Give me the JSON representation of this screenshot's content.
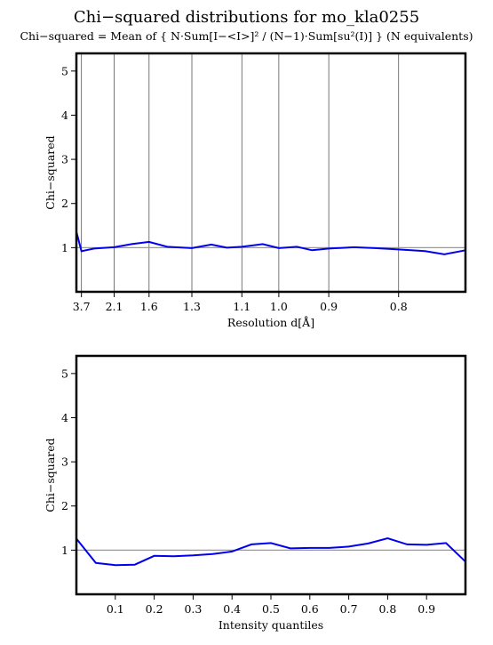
{
  "title": "Chi−squared distributions for mo_kla0255",
  "subtitle": "Chi−squared = Mean of { N·Sum[I−<I>]² / (N−1)·Sum[su²(I)] } (N equivalents)",
  "colors": {
    "line": "#0000ee",
    "reference": "#999999",
    "grid": "#555555",
    "frame": "#000000"
  },
  "chart_data": [
    {
      "type": "line",
      "title": "",
      "xlabel": "Resolution d[Å]",
      "ylabel": "Chi−squared",
      "x_scale": "reciprocal-squared",
      "xlim": [
        4.5,
        0.73
      ],
      "ylim": [
        0.0,
        5.4
      ],
      "yticks": [
        1,
        2,
        3,
        4,
        5
      ],
      "xticks": [
        3.7,
        2.1,
        1.6,
        1.3,
        1.1,
        1.0,
        0.9,
        0.8
      ],
      "xtick_labels": [
        "3.7",
        "2.1",
        "1.6",
        "1.3",
        "1.1",
        "1.0",
        "0.9",
        "0.8"
      ],
      "vertical_grid": true,
      "reference_y": 1,
      "series": [
        {
          "x": [
            4.5,
            3.7,
            2.75,
            2.1,
            1.8,
            1.6,
            1.45,
            1.3,
            1.21,
            1.15,
            1.1,
            1.04,
            1.0,
            0.96,
            0.93,
            0.9,
            0.86,
            0.83,
            0.8,
            0.77,
            0.75,
            0.73
          ],
          "y": [
            1.36,
            0.92,
            0.98,
            1.01,
            1.08,
            1.13,
            1.02,
            0.99,
            1.07,
            1.0,
            1.02,
            1.08,
            0.99,
            1.02,
            0.94,
            0.98,
            1.01,
            0.99,
            0.96,
            0.92,
            0.85,
            0.94
          ]
        }
      ]
    },
    {
      "type": "line",
      "title": "",
      "xlabel": "Intensity quantiles",
      "ylabel": "Chi−squared",
      "xlim": [
        0.0,
        1.0
      ],
      "ylim": [
        0.0,
        5.4
      ],
      "yticks": [
        1,
        2,
        3,
        4,
        5
      ],
      "xticks": [
        0.1,
        0.2,
        0.3,
        0.4,
        0.5,
        0.6,
        0.7,
        0.8,
        0.9
      ],
      "xtick_labels": [
        "0.1",
        "0.2",
        "0.3",
        "0.4",
        "0.5",
        "0.6",
        "0.7",
        "0.8",
        "0.9"
      ],
      "vertical_grid": false,
      "reference_y": 1,
      "series": [
        {
          "x": [
            0.0,
            0.05,
            0.1,
            0.15,
            0.2,
            0.25,
            0.3,
            0.35,
            0.4,
            0.45,
            0.5,
            0.55,
            0.6,
            0.65,
            0.7,
            0.75,
            0.8,
            0.85,
            0.9,
            0.95,
            1.0
          ],
          "y": [
            1.26,
            0.71,
            0.66,
            0.67,
            0.87,
            0.86,
            0.88,
            0.91,
            0.97,
            1.13,
            1.16,
            1.04,
            1.05,
            1.05,
            1.08,
            1.15,
            1.27,
            1.13,
            1.12,
            1.16,
            0.74
          ]
        }
      ]
    }
  ]
}
